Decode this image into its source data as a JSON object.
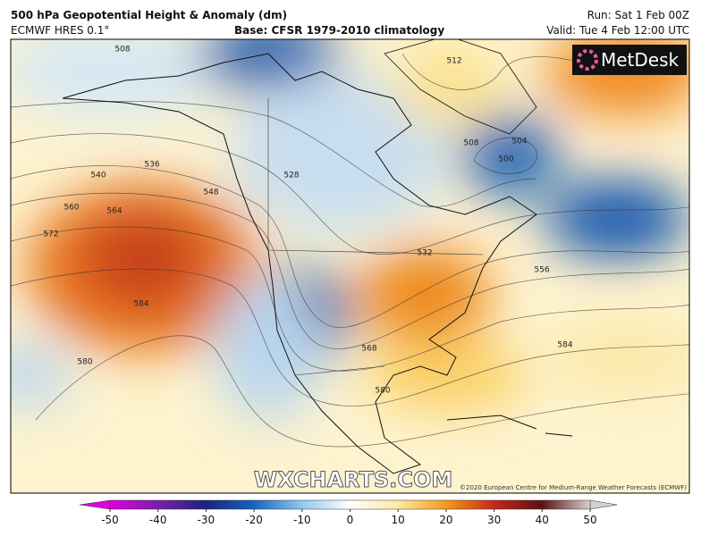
{
  "header": {
    "title": "500 hPa Geopotential Height & Anomaly (dm)",
    "model": "ECMWF HRES 0.1°",
    "base": "Base: CFSR 1979-2010 climatology",
    "run": "Run: Sat 1 Feb 00Z",
    "valid": "Valid: Tue 4 Feb 12:00 UTC"
  },
  "map": {
    "logo": "MetDesk",
    "watermark": "WXCHARTS.COM",
    "credit": "©2020 European Centre for Medium-Range Weather Forecasts (ECMWF)",
    "contour_labels": [
      "508",
      "512",
      "504",
      "500",
      "508",
      "536",
      "540",
      "548",
      "560",
      "564",
      "572",
      "584",
      "580",
      "556",
      "584",
      "568",
      "580",
      "532",
      "528"
    ]
  },
  "colorbar": {
    "ticks": [
      -50,
      -40,
      -30,
      -20,
      -10,
      0,
      10,
      20,
      30,
      40,
      50
    ]
  }
}
